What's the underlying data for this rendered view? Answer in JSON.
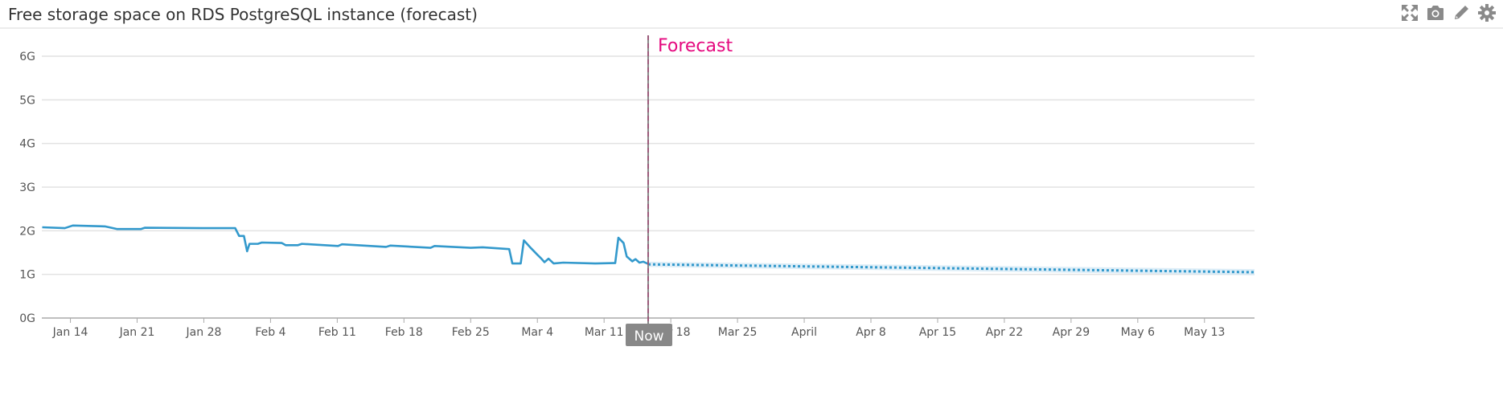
{
  "header": {
    "title": "Free storage space on RDS PostgreSQL instance (forecast)",
    "toolbar": [
      {
        "icon": "expand-icon",
        "label": "Fullscreen"
      },
      {
        "icon": "camera-icon",
        "label": "Snapshot"
      },
      {
        "icon": "pencil-icon",
        "label": "Edit"
      },
      {
        "icon": "gear-icon",
        "label": "Settings"
      }
    ]
  },
  "colors": {
    "line": "#3399cc",
    "band": "#d3e8f5",
    "marker": "#9a5a7a",
    "forecast_text": "#e5097f",
    "now_badge": "#888888",
    "grid": "#e2e2e2",
    "icon": "#8a8a8a"
  },
  "chart_data": {
    "type": "line",
    "title": "Free storage space on RDS PostgreSQL instance (forecast)",
    "xlabel": "",
    "ylabel": "",
    "x_type": "date",
    "xlim": [
      "Jan 11 00:00",
      "May 18 06:00"
    ],
    "ylim": [
      0,
      6
    ],
    "y_unit": "G",
    "y_ticks": [
      0,
      1,
      2,
      3,
      4,
      5,
      6
    ],
    "y_tick_labels": [
      "0G",
      "1G",
      "2G",
      "3G",
      "4G",
      "5G",
      "6G"
    ],
    "x_ticks": [
      "Jan 14 00:00",
      "Jan 21 00:00",
      "Jan 28 00:00",
      "Feb 4 00:00",
      "Feb 11 00:00",
      "Feb 18 00:00",
      "Feb 25 00:00",
      "Mar 4 00:00",
      "Mar 11 00:00",
      "Mar 18 00:00",
      "Mar 25 00:00",
      "Apr 1 00:00",
      "Apr 8 00:00",
      "Apr 15 00:00",
      "Apr 22 00:00",
      "Apr 29 00:00",
      "May 6 00:00",
      "May 13 00:00"
    ],
    "x_tick_labels": [
      "Jan 14",
      "Jan 21",
      "Jan 28",
      "Feb 4",
      "Feb 11",
      "Feb 18",
      "Feb 25",
      "Mar 4",
      "Mar 11",
      "Mar 18",
      "Mar 25",
      "April",
      "Apr 8",
      "Apr 15",
      "Apr 22",
      "Apr 29",
      "May 6",
      "May 13"
    ],
    "grid": true,
    "legend": "none",
    "marker": {
      "x": "Mar 15 15:00",
      "label": "Forecast",
      "badge": "Now"
    },
    "series": [
      {
        "style": "solid",
        "points": [
          [
            "Jan 11 01:00",
            2.08
          ],
          [
            "Jan 13 10:00",
            2.06
          ],
          [
            "Jan 14 06:00",
            2.12
          ],
          [
            "Jan 17 15:00",
            2.1
          ],
          [
            "Jan 18 21:00",
            2.04
          ],
          [
            "Jan 21 10:00",
            2.04
          ],
          [
            "Jan 21 20:00",
            2.07
          ],
          [
            "Jan 27 18:00",
            2.06
          ],
          [
            "Jan 31 07:00",
            2.06
          ],
          [
            "Jan 31 17:00",
            1.88
          ],
          [
            "Feb 1 05:00",
            1.88
          ],
          [
            "Feb 1 13:00",
            1.53
          ],
          [
            "Feb 1 19:00",
            1.7
          ],
          [
            "Feb 2 16:00",
            1.7
          ],
          [
            "Feb 3 02:00",
            1.73
          ],
          [
            "Feb 5 04:00",
            1.72
          ],
          [
            "Feb 5 14:00",
            1.67
          ],
          [
            "Feb 6 21:00",
            1.67
          ],
          [
            "Feb 7 07:00",
            1.7
          ],
          [
            "Feb 11 02:00",
            1.65
          ],
          [
            "Feb 11 12:00",
            1.69
          ],
          [
            "Feb 16 03:00",
            1.63
          ],
          [
            "Feb 16 14:00",
            1.66
          ],
          [
            "Feb 20 19:00",
            1.61
          ],
          [
            "Feb 21 05:00",
            1.65
          ],
          [
            "Feb 25 00:00",
            1.61
          ],
          [
            "Feb 26 06:00",
            1.62
          ],
          [
            "Mar 1 01:00",
            1.58
          ],
          [
            "Mar 1 09:00",
            1.25
          ],
          [
            "Mar 2 06:00",
            1.25
          ],
          [
            "Mar 2 14:00",
            1.78
          ],
          [
            "Mar 3 08:00",
            1.6
          ],
          [
            "Mar 4 00:00",
            1.45
          ],
          [
            "Mar 4 08:00",
            1.38
          ],
          [
            "Mar 4 18:00",
            1.28
          ],
          [
            "Mar 5 04:00",
            1.36
          ],
          [
            "Mar 5 17:00",
            1.25
          ],
          [
            "Mar 6 17:00",
            1.27
          ],
          [
            "Mar 10 02:00",
            1.25
          ],
          [
            "Mar 12 04:00",
            1.26
          ],
          [
            "Mar 12 12:00",
            1.84
          ],
          [
            "Mar 13 01:00",
            1.72
          ],
          [
            "Mar 13 09:00",
            1.41
          ],
          [
            "Mar 13 23:00",
            1.3
          ],
          [
            "Mar 14 07:00",
            1.35
          ],
          [
            "Mar 14 17:00",
            1.27
          ],
          [
            "Mar 15 03:00",
            1.29
          ],
          [
            "Mar 15 15:00",
            1.24
          ]
        ]
      },
      {
        "style": "dotted",
        "points": [
          [
            "Mar 15 15:00",
            1.23
          ],
          [
            "May 18 06:00",
            1.05
          ]
        ],
        "band_lower": [
          1.17,
          0.98
        ],
        "band_upper": [
          1.29,
          1.12
        ]
      }
    ]
  }
}
